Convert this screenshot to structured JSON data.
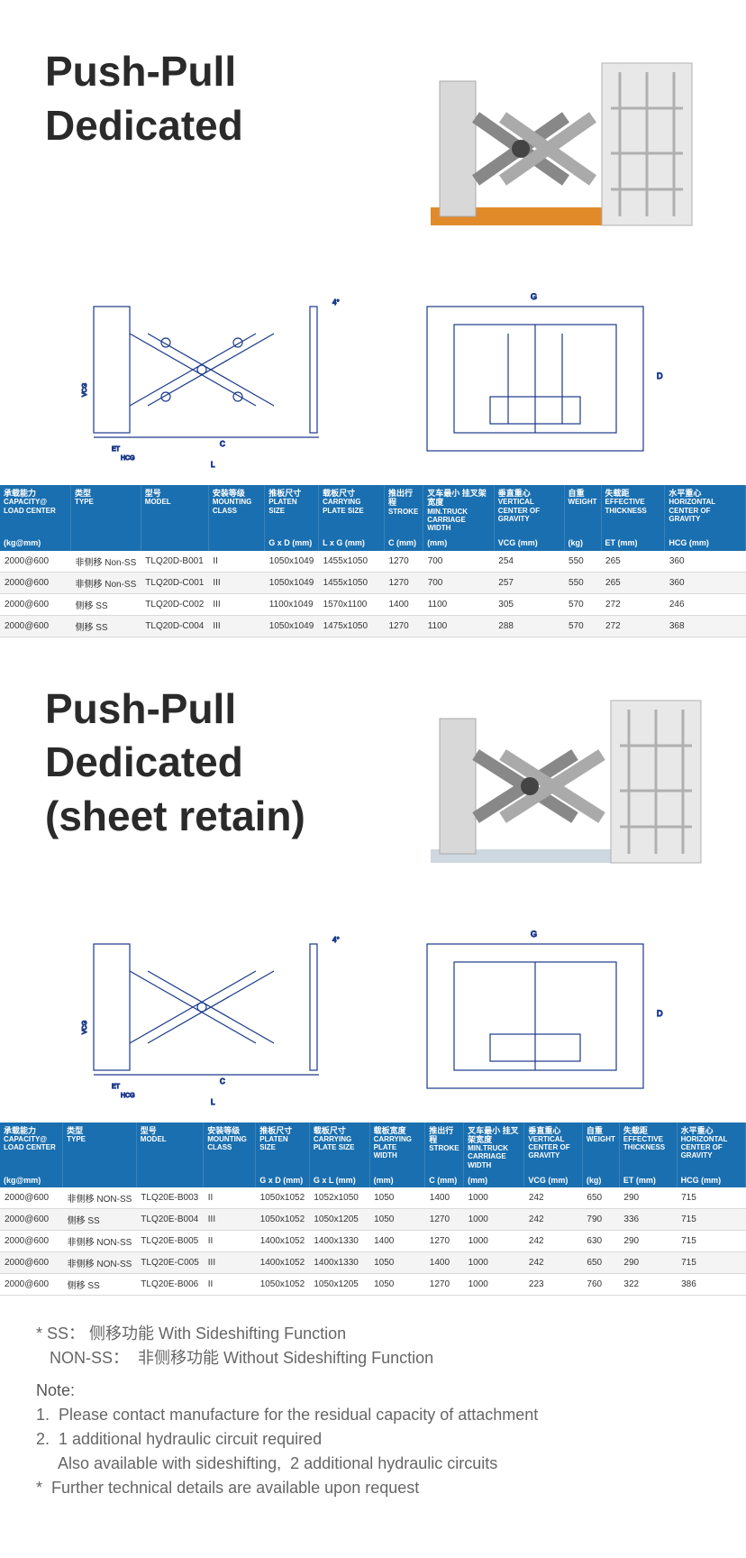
{
  "section1": {
    "title_line1": "Push-Pull",
    "title_line2": "Dedicated"
  },
  "section2": {
    "title_line1": "Push-Pull",
    "title_line2": "Dedicated",
    "title_line3": "(sheet retain)"
  },
  "table1": {
    "header_bg_color": "#1a6fb0",
    "header_text_color": "#ffffff",
    "columns": [
      {
        "cn": "承载能力",
        "en": "CAPACITY@ LOAD CENTER",
        "unit": "(kg@mm)"
      },
      {
        "cn": "类型",
        "en": "TYPE",
        "unit": ""
      },
      {
        "cn": "型号",
        "en": "MODEL",
        "unit": ""
      },
      {
        "cn": "安装等级",
        "en": "MOUNTING CLASS",
        "unit": ""
      },
      {
        "cn": "推板尺寸",
        "en": "PLATEN SIZE",
        "unit": "G x D (mm)"
      },
      {
        "cn": "载板尺寸",
        "en": "CARRYING PLATE SIZE",
        "unit": "L x G (mm)"
      },
      {
        "cn": "推出行程",
        "en": "STROKE",
        "unit": "C (mm)"
      },
      {
        "cn": "叉车最小 挂叉架宽度",
        "en": "MIN.TRUCK CARRIAGE WIDTH",
        "unit": "(mm)"
      },
      {
        "cn": "垂直重心",
        "en": "VERTICAL CENTER OF GRAVITY",
        "unit": "VCG (mm)"
      },
      {
        "cn": "自重",
        "en": "WEIGHT",
        "unit": "(kg)"
      },
      {
        "cn": "失载距",
        "en": "EFFECTIVE THICKNESS",
        "unit": "ET (mm)"
      },
      {
        "cn": "水平重心",
        "en": "HORIZONTAL CENTER OF GRAVITY",
        "unit": "HCG (mm)"
      }
    ],
    "rows": [
      [
        "2000@600",
        "非侧移 Non-SS",
        "TLQ20D-B001",
        "II",
        "1050x1049",
        "1455x1050",
        "1270",
        "700",
        "254",
        "550",
        "265",
        "360"
      ],
      [
        "2000@600",
        "非侧移 Non-SS",
        "TLQ20D-C001",
        "III",
        "1050x1049",
        "1455x1050",
        "1270",
        "700",
        "257",
        "550",
        "265",
        "360"
      ],
      [
        "2000@600",
        "侧移 SS",
        "TLQ20D-C002",
        "III",
        "1100x1049",
        "1570x1100",
        "1400",
        "1100",
        "305",
        "570",
        "272",
        "246"
      ],
      [
        "2000@600",
        "侧移 SS",
        "TLQ20D-C004",
        "III",
        "1050x1049",
        "1475x1050",
        "1270",
        "1100",
        "288",
        "570",
        "272",
        "368"
      ]
    ]
  },
  "table2": {
    "columns": [
      {
        "cn": "承载能力",
        "en": "CAPACITY@ LOAD CENTER",
        "unit": "(kg@mm)"
      },
      {
        "cn": "类型",
        "en": "TYPE",
        "unit": ""
      },
      {
        "cn": "型号",
        "en": "MODEL",
        "unit": ""
      },
      {
        "cn": "安装等级",
        "en": "MOUNTING CLASS",
        "unit": ""
      },
      {
        "cn": "推板尺寸",
        "en": "PLATEN SIZE",
        "unit": "G x D (mm)"
      },
      {
        "cn": "载板尺寸",
        "en": "CARRYING PLATE SIZE",
        "unit": "G x L (mm)"
      },
      {
        "cn": "载板宽度",
        "en": "CARRYING PLATE WIDTH",
        "unit": "(mm)"
      },
      {
        "cn": "推出行程",
        "en": "STROKE",
        "unit": "C (mm)"
      },
      {
        "cn": "叉车最小 挂叉架宽度",
        "en": "MIN.TRUCK CARRIAGE WIDTH",
        "unit": "(mm)"
      },
      {
        "cn": "垂直重心",
        "en": "VERTICAL CENTER OF GRAVITY",
        "unit": "VCG (mm)"
      },
      {
        "cn": "自重",
        "en": "WEIGHT",
        "unit": "(kg)"
      },
      {
        "cn": "失载距",
        "en": "EFFECTIVE THICKNESS",
        "unit": "ET (mm)"
      },
      {
        "cn": "水平重心",
        "en": "HORIZONTAL CENTER OF GRAVITY",
        "unit": "HCG (mm)"
      }
    ],
    "rows": [
      [
        "2000@600",
        "非侧移 NON-SS",
        "TLQ20E-B003",
        "II",
        "1050x1052",
        "1052x1050",
        "1050",
        "1400",
        "1000",
        "242",
        "650",
        "290",
        "715"
      ],
      [
        "2000@600",
        "侧移 SS",
        "TLQ20E-B004",
        "III",
        "1050x1052",
        "1050x1205",
        "1050",
        "1270",
        "1000",
        "242",
        "790",
        "336",
        "715"
      ],
      [
        "2000@600",
        "非侧移 NON-SS",
        "TLQ20E-B005",
        "II",
        "1400x1052",
        "1400x1330",
        "1400",
        "1270",
        "1000",
        "242",
        "630",
        "290",
        "715"
      ],
      [
        "2000@600",
        "非侧移 NON-SS",
        "TLQ20E-C005",
        "III",
        "1400x1052",
        "1400x1330",
        "1050",
        "1400",
        "1000",
        "242",
        "650",
        "290",
        "715"
      ],
      [
        "2000@600",
        "侧移 SS",
        "TLQ20E-B006",
        "II",
        "1050x1052",
        "1050x1205",
        "1050",
        "1270",
        "1000",
        "223",
        "760",
        "322",
        "386"
      ]
    ]
  },
  "footnotes": {
    "ss": "* SS：  侧移功能 With Sideshifting Function",
    "nonss": "   NON-SS：  非侧移功能 Without Sideshifting Function",
    "note_label": "Note:",
    "items": [
      "1.  Please contact manufacture for the residual capacity of attachment",
      "2.  1 additional hydraulic circuit required",
      "     Also available with sideshifting,  2 additional hydraulic circuits",
      "*  Further technical details are available upon request"
    ]
  }
}
